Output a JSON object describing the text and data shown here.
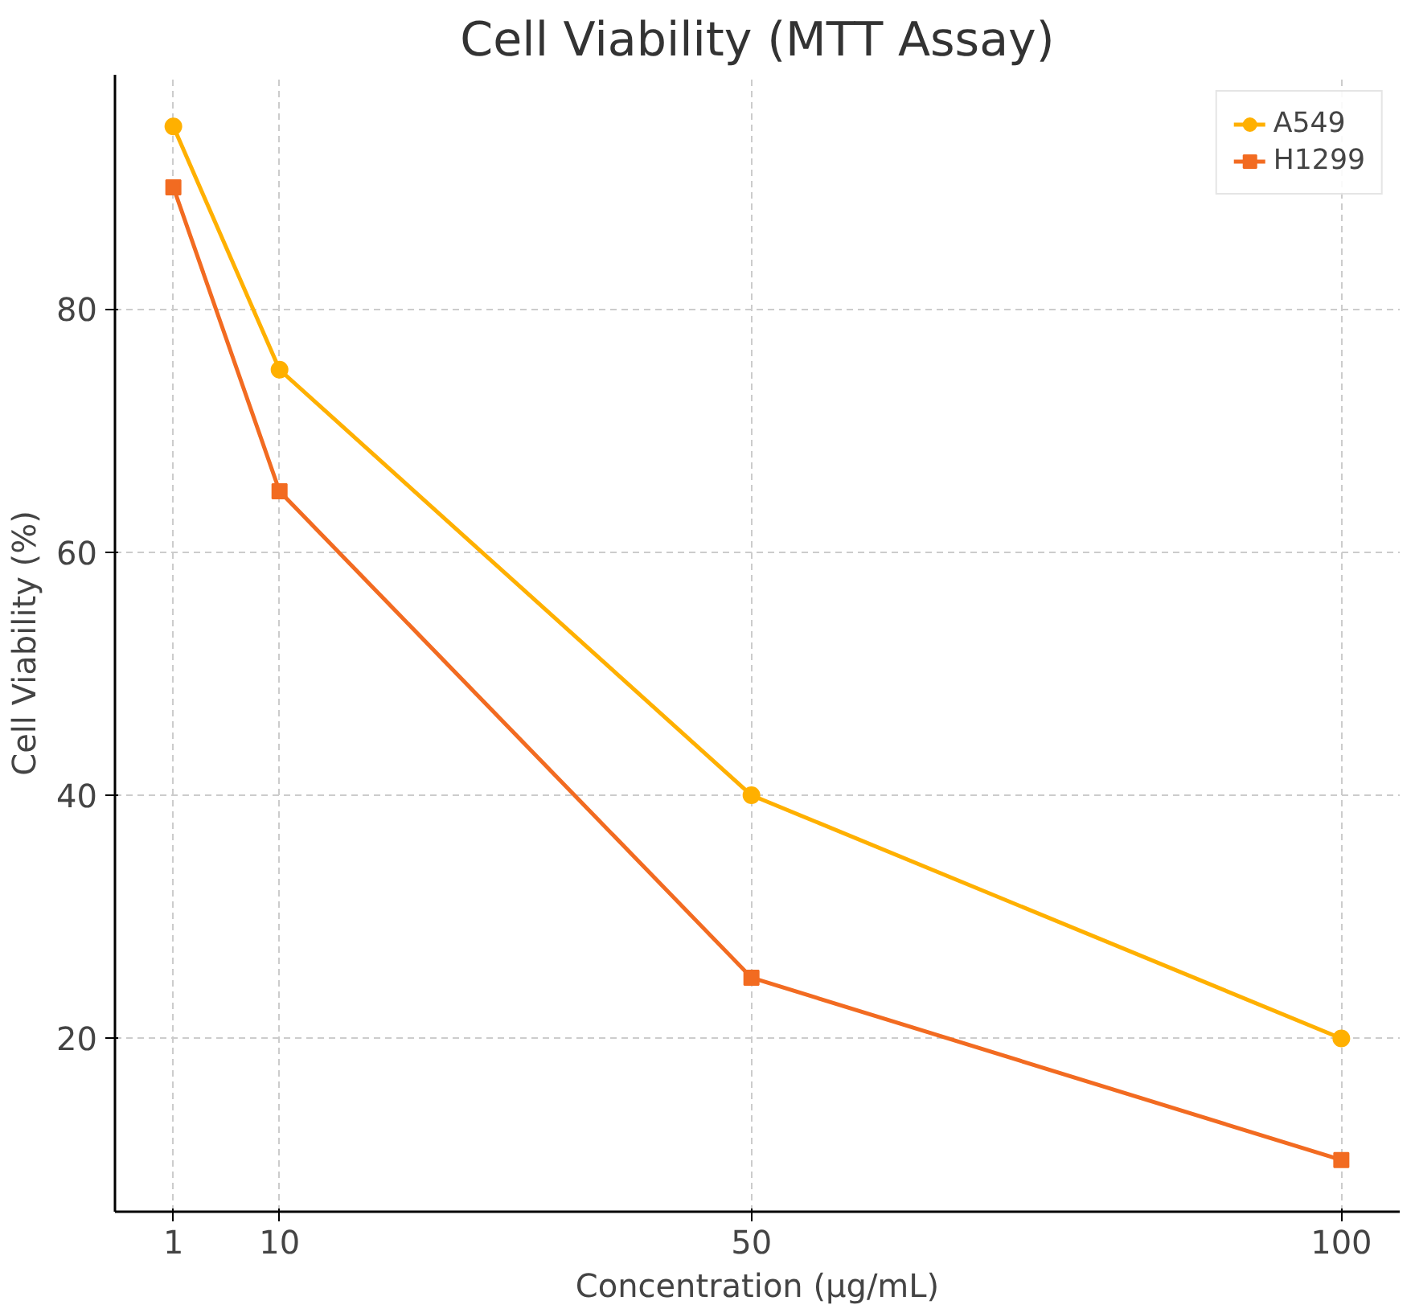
{
  "chart_data": {
    "type": "line",
    "title": "Cell Viability (MTT Assay)",
    "xlabel": "Concentration (µg/mL)",
    "ylabel": "Cell Viability (%)",
    "x": [
      1,
      10,
      50,
      100
    ],
    "series": [
      {
        "name": "A549",
        "color": "#ffb000",
        "marker": "circle",
        "values": [
          95,
          75,
          40,
          20
        ]
      },
      {
        "name": "H1299",
        "color": "#f26b21",
        "marker": "square",
        "values": [
          90,
          65,
          25,
          10
        ]
      }
    ],
    "xlim": [
      -3.95,
      104.95
    ],
    "ylim": [
      5.75,
      99.25
    ],
    "xticks": [
      1,
      10,
      50,
      100
    ],
    "yticks": [
      20,
      40,
      60,
      80
    ],
    "grid": true,
    "legend": "top right",
    "line_style": "solid"
  }
}
